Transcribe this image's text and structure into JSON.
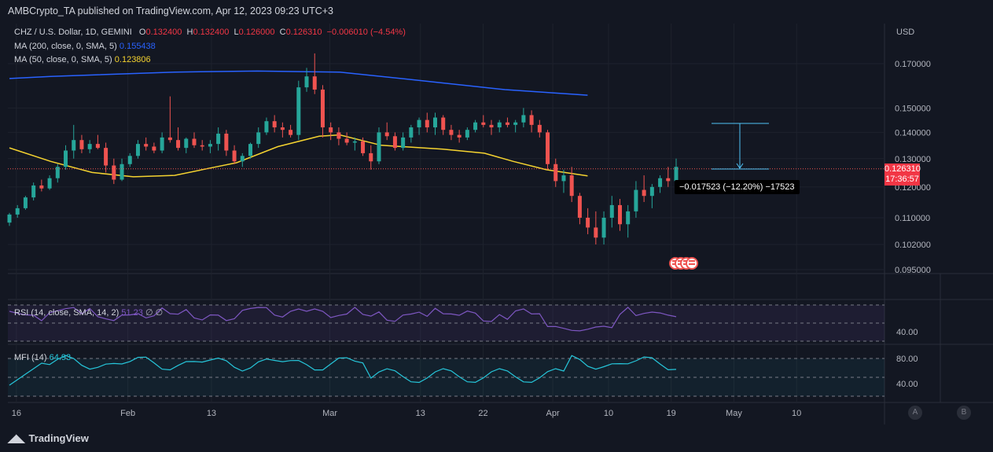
{
  "header": {
    "publisher_line": "AMBCrypto_TA published on TradingView.com, Apr 12, 2023 09:23 UTC+3"
  },
  "legend": {
    "symbol": "CHZ / U.S. Dollar, 1D, GEMINI",
    "o_label": "O",
    "o_value": "0.132400",
    "h_label": "H",
    "h_value": "0.132400",
    "l_label": "L",
    "l_value": "0.126000",
    "c_label": "C",
    "c_value": "0.126310",
    "change": "−0.006010 (−4.54%)",
    "ma200_label": "MA (200, close, 0, SMA, 5)",
    "ma200_value": "0.155438",
    "ma50_label": "MA (50, close, 0, SMA, 5)",
    "ma50_value": "0.123806",
    "rsi_label": "RSI (14, close, SMA, 14, 2)",
    "rsi_value": "51.23",
    "rsi_extra": "∅ ∅",
    "mfi_label": "MFI (14)",
    "mfi_value": "64.93"
  },
  "price_badge": {
    "price": "0.126310",
    "countdown": "17:36:57"
  },
  "measure_label": "−0.017523 (−12.20%) −17523",
  "colors": {
    "up": "#26a69a",
    "down": "#ef5350",
    "ma200": "#2962ff",
    "ma50": "#f5d330",
    "rsi": "#7e57c2",
    "mfi": "#26c6da",
    "bg": "#131722"
  },
  "footer": {
    "brand": "TradingView"
  },
  "buttons": {
    "a": "A",
    "b": "B"
  },
  "chart_data": {
    "type": "candlestick",
    "title": "CHZ / U.S. Dollar, 1D, GEMINI",
    "ylabel": "USD",
    "y_ticks": [
      "0.170000",
      "0.150000",
      "0.140000",
      "0.130000",
      "0.120000",
      "0.110000",
      "0.102000",
      "0.095000"
    ],
    "y_tick_values": [
      0.17,
      0.15,
      0.14,
      0.13,
      0.12,
      0.11,
      0.102,
      0.095
    ],
    "x_ticks": [
      "16",
      "Feb",
      "13",
      "Mar",
      "13",
      "22",
      "Apr",
      "10",
      "19",
      "May",
      "10"
    ],
    "x_tick_dayindex": [
      1,
      17,
      29,
      46,
      59,
      68,
      78,
      86,
      95,
      104,
      113
    ],
    "start_date": "2023-01-15",
    "current_price": 0.12631,
    "candles": [
      [
        0.1085,
        0.1115,
        0.1075,
        0.111
      ],
      [
        0.111,
        0.114,
        0.11,
        0.113
      ],
      [
        0.113,
        0.117,
        0.1125,
        0.1165
      ],
      [
        0.1165,
        0.1215,
        0.1155,
        0.1205
      ],
      [
        0.1205,
        0.1225,
        0.1185,
        0.1195
      ],
      [
        0.1195,
        0.124,
        0.119,
        0.123
      ],
      [
        0.123,
        0.128,
        0.1215,
        0.127
      ],
      [
        0.127,
        0.135,
        0.126,
        0.133
      ],
      [
        0.133,
        0.143,
        0.13,
        0.137
      ],
      [
        0.137,
        0.139,
        0.132,
        0.1335
      ],
      [
        0.1335,
        0.137,
        0.132,
        0.1355
      ],
      [
        0.1355,
        0.139,
        0.1335,
        0.134
      ],
      [
        0.134,
        0.136,
        0.125,
        0.1275
      ],
      [
        0.1275,
        0.13,
        0.121,
        0.1225
      ],
      [
        0.1225,
        0.13,
        0.122,
        0.128
      ],
      [
        0.128,
        0.132,
        0.127,
        0.131
      ],
      [
        0.131,
        0.137,
        0.13,
        0.1355
      ],
      [
        0.1355,
        0.138,
        0.133,
        0.1345
      ],
      [
        0.1345,
        0.136,
        0.132,
        0.133
      ],
      [
        0.133,
        0.14,
        0.132,
        0.138
      ],
      [
        0.138,
        0.155,
        0.136,
        0.137
      ],
      [
        0.137,
        0.142,
        0.133,
        0.134
      ],
      [
        0.134,
        0.138,
        0.132,
        0.1375
      ],
      [
        0.1375,
        0.14,
        0.134,
        0.135
      ],
      [
        0.135,
        0.137,
        0.133,
        0.1345
      ],
      [
        0.1345,
        0.137,
        0.132,
        0.1355
      ],
      [
        0.1355,
        0.142,
        0.133,
        0.1395
      ],
      [
        0.1395,
        0.141,
        0.131,
        0.133
      ],
      [
        0.133,
        0.135,
        0.128,
        0.129
      ],
      [
        0.129,
        0.132,
        0.127,
        0.131
      ],
      [
        0.131,
        0.136,
        0.13,
        0.1355
      ],
      [
        0.1355,
        0.142,
        0.134,
        0.14
      ],
      [
        0.14,
        0.146,
        0.139,
        0.1445
      ],
      [
        0.1445,
        0.147,
        0.14,
        0.142
      ],
      [
        0.142,
        0.144,
        0.138,
        0.141
      ],
      [
        0.141,
        0.143,
        0.138,
        0.139
      ],
      [
        0.139,
        0.162,
        0.137,
        0.159
      ],
      [
        0.159,
        0.168,
        0.157,
        0.164
      ],
      [
        0.164,
        0.175,
        0.156,
        0.158
      ],
      [
        0.158,
        0.16,
        0.138,
        0.142
      ],
      [
        0.142,
        0.144,
        0.137,
        0.14
      ],
      [
        0.14,
        0.142,
        0.135,
        0.1375
      ],
      [
        0.1375,
        0.14,
        0.135,
        0.136
      ],
      [
        0.136,
        0.138,
        0.133,
        0.1365
      ],
      [
        0.1365,
        0.138,
        0.131,
        0.132
      ],
      [
        0.132,
        0.135,
        0.126,
        0.129
      ],
      [
        0.129,
        0.142,
        0.128,
        0.14
      ],
      [
        0.14,
        0.144,
        0.137,
        0.1385
      ],
      [
        0.1385,
        0.14,
        0.133,
        0.134
      ],
      [
        0.134,
        0.14,
        0.133,
        0.138
      ],
      [
        0.138,
        0.143,
        0.136,
        0.142
      ],
      [
        0.142,
        0.146,
        0.139,
        0.145
      ],
      [
        0.145,
        0.148,
        0.14,
        0.142
      ],
      [
        0.142,
        0.148,
        0.139,
        0.146
      ],
      [
        0.146,
        0.147,
        0.139,
        0.141
      ],
      [
        0.141,
        0.143,
        0.137,
        0.139
      ],
      [
        0.139,
        0.141,
        0.136,
        0.138
      ],
      [
        0.138,
        0.142,
        0.137,
        0.141
      ],
      [
        0.141,
        0.145,
        0.14,
        0.144
      ],
      [
        0.144,
        0.147,
        0.142,
        0.143
      ],
      [
        0.143,
        0.145,
        0.139,
        0.142
      ],
      [
        0.142,
        0.145,
        0.14,
        0.144
      ],
      [
        0.144,
        0.146,
        0.142,
        0.143
      ],
      [
        0.143,
        0.145,
        0.14,
        0.144
      ],
      [
        0.144,
        0.15,
        0.142,
        0.147
      ],
      [
        0.147,
        0.149,
        0.14,
        0.143
      ],
      [
        0.143,
        0.145,
        0.138,
        0.14
      ],
      [
        0.14,
        0.141,
        0.126,
        0.128
      ],
      [
        0.128,
        0.13,
        0.12,
        0.122
      ],
      [
        0.122,
        0.126,
        0.118,
        0.124
      ],
      [
        0.124,
        0.127,
        0.115,
        0.117
      ],
      [
        0.117,
        0.118,
        0.108,
        0.11
      ],
      [
        0.11,
        0.113,
        0.105,
        0.107
      ],
      [
        0.107,
        0.112,
        0.102,
        0.104
      ],
      [
        0.104,
        0.112,
        0.102,
        0.11
      ],
      [
        0.11,
        0.117,
        0.107,
        0.114
      ],
      [
        0.114,
        0.116,
        0.106,
        0.108
      ],
      [
        0.108,
        0.114,
        0.104,
        0.112
      ],
      [
        0.112,
        0.122,
        0.11,
        0.119
      ],
      [
        0.119,
        0.124,
        0.115,
        0.117
      ],
      [
        0.117,
        0.121,
        0.113,
        0.12
      ],
      [
        0.12,
        0.124,
        0.118,
        0.123
      ],
      [
        0.123,
        0.127,
        0.12,
        0.122
      ],
      [
        0.122,
        0.13,
        0.121,
        0.127
      ]
    ],
    "ma200": [
      [
        0,
        0.163
      ],
      [
        10,
        0.164
      ],
      [
        40,
        0.166
      ],
      [
        60,
        0.1665
      ],
      [
        80,
        0.166
      ],
      [
        100,
        0.162
      ],
      [
        120,
        0.158
      ],
      [
        140,
        0.1555
      ]
    ],
    "ma50": [
      [
        0,
        0.134
      ],
      [
        10,
        0.129
      ],
      [
        20,
        0.125
      ],
      [
        30,
        0.1235
      ],
      [
        40,
        0.124
      ],
      [
        50,
        0.127
      ],
      [
        55,
        0.1285
      ],
      [
        65,
        0.1345
      ],
      [
        75,
        0.1385
      ],
      [
        80,
        0.139
      ],
      [
        90,
        0.135
      ],
      [
        105,
        0.1335
      ],
      [
        115,
        0.132
      ],
      [
        122,
        0.129
      ],
      [
        130,
        0.126
      ],
      [
        140,
        0.1238
      ]
    ],
    "rsi": {
      "label": "RSI (14, close, SMA, 14, 2)",
      "current": 51.23,
      "y_ticks": [
        "40.00"
      ]
    },
    "mfi": {
      "label": "MFI (14)",
      "current": 64.93,
      "y_ticks": [
        "80.00",
        "40.00"
      ]
    }
  }
}
